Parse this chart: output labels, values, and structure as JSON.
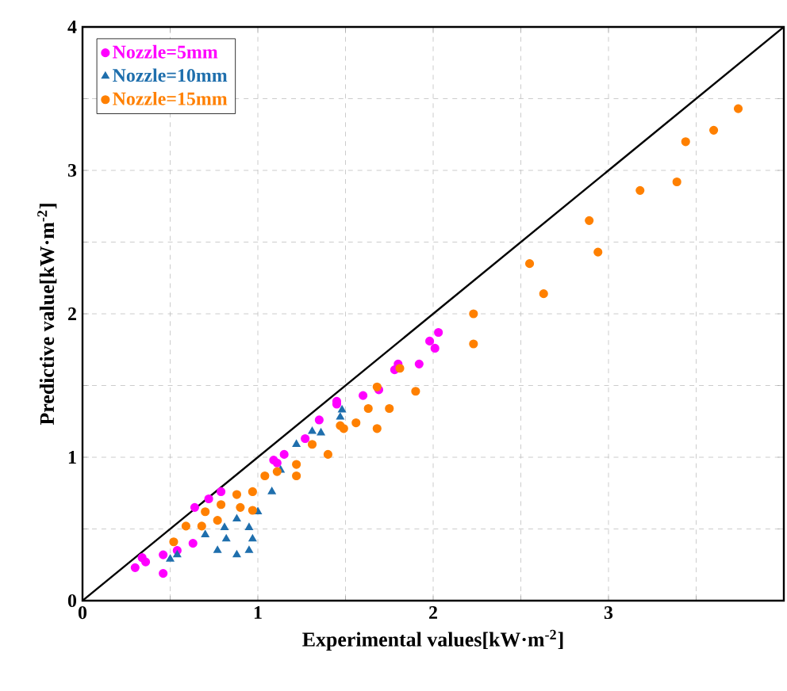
{
  "chart_data": {
    "type": "scatter",
    "xlabel": "Experimental values[kW·m$^{-2}$]",
    "ylabel": "Predictive value[kW·m$^{-2}$]",
    "xlim": [
      0,
      4
    ],
    "ylim": [
      0,
      4
    ],
    "xticks": [
      0,
      {
        "value": 0.5,
        "label": null
      },
      1,
      {
        "value": 1.5,
        "label": null
      },
      2,
      {
        "value": 2.5,
        "label": null
      },
      3,
      {
        "value": 3.5,
        "label": null
      }
    ],
    "yticks": [
      0,
      {
        "value": 0.5,
        "label": null
      },
      1,
      {
        "value": 1.5,
        "label": null
      },
      2,
      {
        "value": 2.5,
        "label": null
      },
      3,
      {
        "value": 3.5,
        "label": null
      },
      4
    ],
    "grid": true,
    "legend": "top left",
    "series": [
      {
        "name": "Nozzle=5mm",
        "color": "#ff00ff",
        "marker": "circle",
        "x": [
          2.03,
          1.98,
          2.01,
          1.8,
          1.92,
          1.78,
          1.69,
          1.6,
          1.45,
          1.35,
          1.27,
          1.15,
          1.11,
          0.3,
          0.36,
          0.46,
          0.46,
          0.54,
          0.64,
          0.72,
          0.79,
          0.63,
          1.09,
          1.45,
          0.34
        ],
        "values": [
          1.87,
          1.81,
          1.76,
          1.65,
          1.65,
          1.61,
          1.47,
          1.43,
          1.37,
          1.26,
          1.13,
          1.02,
          0.96,
          0.23,
          0.27,
          0.19,
          0.32,
          0.35,
          0.65,
          0.71,
          0.76,
          0.4,
          0.98,
          1.39,
          0.3
        ]
      },
      {
        "name": "Nozzle=10mm",
        "color": "#1f6fad",
        "marker": "triangle",
        "x": [
          0.5,
          0.54,
          0.77,
          0.82,
          0.88,
          0.81,
          0.95,
          0.97,
          0.88,
          1.0,
          1.08,
          1.22,
          1.31,
          1.47,
          1.36,
          0.7,
          1.13,
          0.95,
          1.48
        ],
        "values": [
          0.29,
          0.32,
          0.35,
          0.43,
          0.32,
          0.51,
          0.51,
          0.43,
          0.57,
          0.62,
          0.76,
          1.09,
          1.18,
          1.28,
          1.17,
          0.46,
          0.91,
          0.35,
          1.33
        ]
      },
      {
        "name": "Nozzle=15mm",
        "color": "#ff8000",
        "marker": "circle",
        "x": [
          3.74,
          3.6,
          3.44,
          3.39,
          3.18,
          2.89,
          2.94,
          2.55,
          2.63,
          2.23,
          2.23,
          1.9,
          1.68,
          1.81,
          1.75,
          1.68,
          1.63,
          1.56,
          1.47,
          0.52,
          0.59,
          0.7,
          0.79,
          0.88,
          0.97,
          1.04,
          0.97,
          0.9,
          1.11,
          1.22,
          1.31,
          1.4,
          1.49,
          0.68,
          0.77,
          1.22
        ],
        "values": [
          3.43,
          3.28,
          3.2,
          2.92,
          2.86,
          2.65,
          2.43,
          2.35,
          2.14,
          2.0,
          1.79,
          1.46,
          1.49,
          1.62,
          1.34,
          1.2,
          1.34,
          1.24,
          1.22,
          0.41,
          0.52,
          0.62,
          0.67,
          0.74,
          0.76,
          0.87,
          0.63,
          0.65,
          0.9,
          0.95,
          1.09,
          1.02,
          1.2,
          0.52,
          0.56,
          0.87
        ]
      },
      {
        "type": "line",
        "color": "#000000",
        "marker": "none",
        "x": [
          0,
          4
        ],
        "values": [
          0,
          4
        ]
      }
    ]
  }
}
